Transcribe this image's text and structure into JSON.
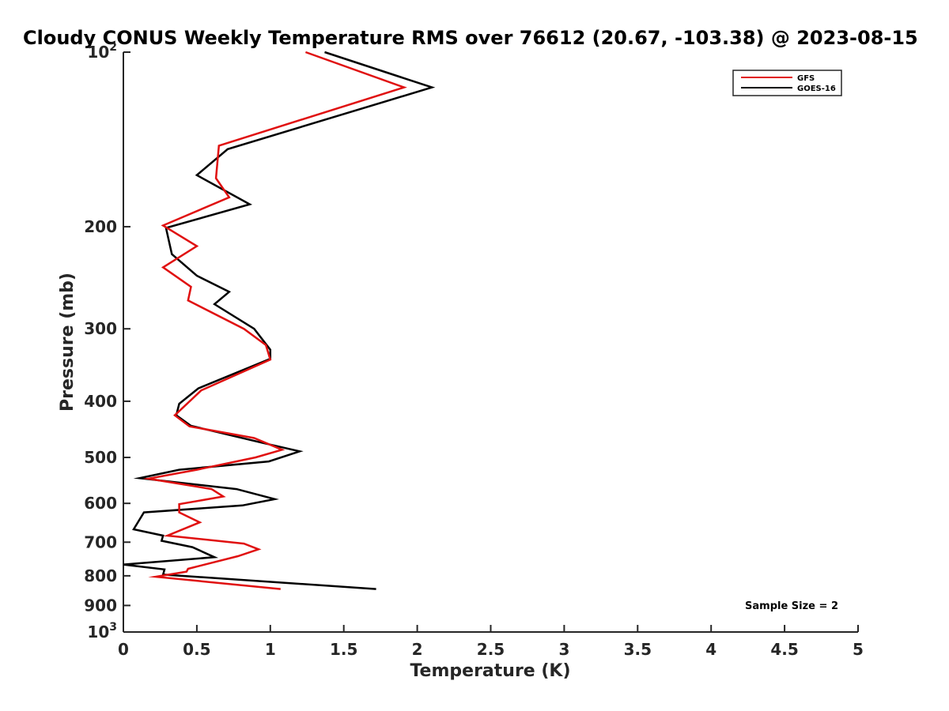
{
  "chart_data": {
    "type": "line",
    "title": "Cloudy CONUS Weekly Temperature RMS over 76612 (20.67, -103.38) @ 2023-08-15",
    "xlabel": "Temperature (K)",
    "ylabel": "Pressure (mb)",
    "xlim": [
      0,
      5
    ],
    "ylim": [
      100,
      1000
    ],
    "yscale": "log",
    "y_reversed": true,
    "xticks": [
      "0",
      "0.5",
      "1",
      "1.5",
      "2",
      "2.5",
      "3",
      "3.5",
      "4",
      "4.5",
      "5"
    ],
    "xtick_values": [
      0,
      0.5,
      1,
      1.5,
      2,
      2.5,
      3,
      3.5,
      4,
      4.5,
      5
    ],
    "yticks": [
      {
        "value": 100,
        "base": "10",
        "exp": "2"
      },
      {
        "value": 200,
        "label": "200"
      },
      {
        "value": 300,
        "label": "300"
      },
      {
        "value": 400,
        "label": "400"
      },
      {
        "value": 500,
        "label": "500"
      },
      {
        "value": 600,
        "label": "600"
      },
      {
        "value": 700,
        "label": "700"
      },
      {
        "value": 800,
        "label": "800"
      },
      {
        "value": 900,
        "label": "900"
      },
      {
        "value": 1000,
        "base": "10",
        "exp": "3"
      }
    ],
    "legend_position": "top-right",
    "annotation": "Sample Size = 2",
    "series": [
      {
        "name": "GFS",
        "color": "#e01010",
        "points": [
          [
            1.24,
            100
          ],
          [
            1.91,
            115
          ],
          [
            0.65,
            145
          ],
          [
            0.63,
            165
          ],
          [
            0.72,
            178
          ],
          [
            0.27,
            199
          ],
          [
            0.5,
            216
          ],
          [
            0.27,
            235
          ],
          [
            0.46,
            254
          ],
          [
            0.44,
            268
          ],
          [
            0.82,
            300
          ],
          [
            0.97,
            320
          ],
          [
            1.0,
            339
          ],
          [
            0.53,
            383
          ],
          [
            0.35,
            423
          ],
          [
            0.45,
            442
          ],
          [
            0.89,
            463
          ],
          [
            1.08,
            485
          ],
          [
            0.9,
            500
          ],
          [
            0.5,
            525
          ],
          [
            0.17,
            544
          ],
          [
            0.6,
            567
          ],
          [
            0.68,
            584
          ],
          [
            0.38,
            602
          ],
          [
            0.38,
            622
          ],
          [
            0.52,
            647
          ],
          [
            0.3,
            682
          ],
          [
            0.82,
            704
          ],
          [
            0.92,
            720
          ],
          [
            0.78,
            740
          ],
          [
            0.44,
            778
          ],
          [
            0.43,
            787
          ],
          [
            0.22,
            803
          ],
          [
            1.07,
            843
          ]
        ]
      },
      {
        "name": "GOES-16",
        "color": "#000000",
        "points": [
          [
            1.37,
            100
          ],
          [
            2.1,
            115
          ],
          [
            0.71,
            147
          ],
          [
            0.5,
            163
          ],
          [
            0.86,
            183
          ],
          [
            0.29,
            201
          ],
          [
            0.33,
            223
          ],
          [
            0.5,
            243
          ],
          [
            0.72,
            259
          ],
          [
            0.62,
            272
          ],
          [
            0.89,
            300
          ],
          [
            1.0,
            326
          ],
          [
            1.0,
            338
          ],
          [
            0.51,
            380
          ],
          [
            0.38,
            404
          ],
          [
            0.36,
            423
          ],
          [
            0.46,
            441
          ],
          [
            0.95,
            472
          ],
          [
            1.2,
            488
          ],
          [
            0.99,
            508
          ],
          [
            0.38,
            525
          ],
          [
            0.11,
            543
          ],
          [
            0.77,
            567
          ],
          [
            1.03,
            590
          ],
          [
            0.81,
            605
          ],
          [
            0.14,
            622
          ],
          [
            0.07,
            665
          ],
          [
            0.27,
            682
          ],
          [
            0.26,
            696
          ],
          [
            0.47,
            714
          ],
          [
            0.62,
            743
          ],
          [
            0.0,
            765
          ],
          [
            0.28,
            780
          ],
          [
            0.27,
            796
          ],
          [
            1.72,
            843
          ]
        ]
      }
    ]
  }
}
